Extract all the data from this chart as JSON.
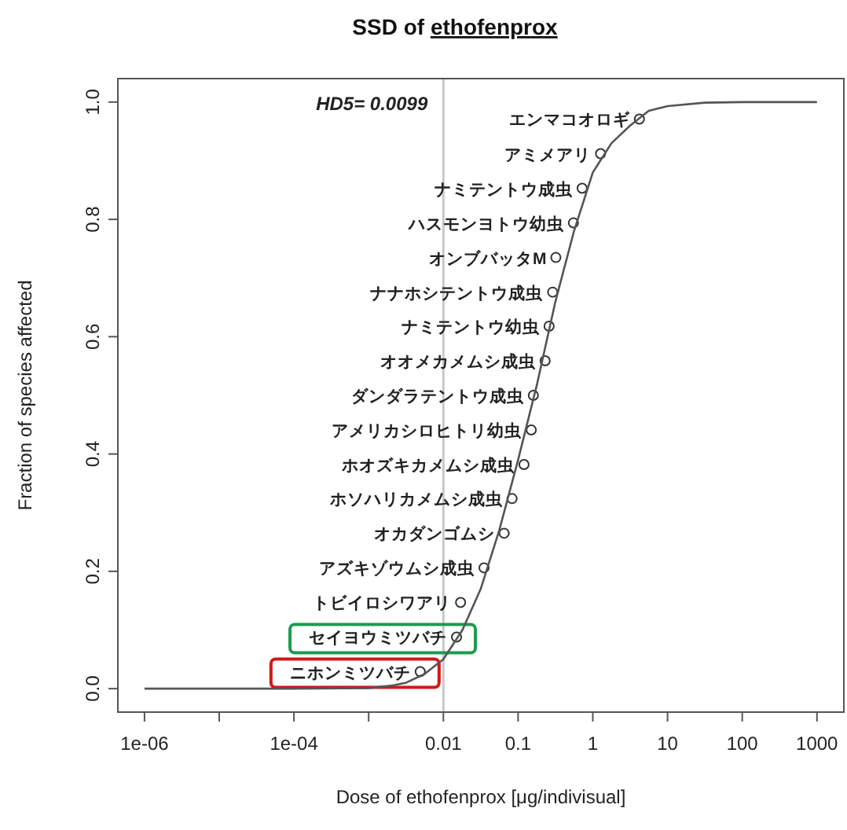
{
  "chart_data": {
    "type": "scatter",
    "title": "SSD of ethofenprox",
    "xlabel": "Dose of ethofenprox [μg/indivisual]",
    "ylabel": "Fraction of species affected",
    "log": "x",
    "grid": false,
    "xlim": [
      4.4e-07,
      2290
    ],
    "ylim": [
      -0.04,
      1.04
    ],
    "xticks": [
      {
        "value": 1e-06,
        "label": "1e-06"
      },
      {
        "value": 1e-05,
        "label": null
      },
      {
        "value": 0.0001,
        "label": "1e-04"
      },
      {
        "value": 0.001,
        "label": null
      },
      0.01,
      0.1,
      1,
      10,
      100,
      1000
    ],
    "yticks": [
      {
        "value": 0,
        "label": "0.0"
      },
      0.2,
      0.4,
      0.6,
      0.8,
      {
        "value": 1,
        "label": "1.0"
      }
    ],
    "ref_lines": [
      {
        "axis": "x",
        "value": 0.01,
        "color": "#c8c8c8"
      }
    ],
    "annotations": [
      "HD5= 0.0099"
    ],
    "series": [
      {
        "marker": "circle",
        "color": "#333333",
        "x": [
          0.0049,
          0.015,
          0.017,
          0.035,
          0.065,
          0.083,
          0.12,
          0.15,
          0.16,
          0.23,
          0.26,
          0.29,
          0.32,
          0.55,
          0.72,
          1.27,
          4.2
        ],
        "values": [
          0.029,
          0.088,
          0.147,
          0.206,
          0.265,
          0.324,
          0.382,
          0.441,
          0.5,
          0.559,
          0.618,
          0.676,
          0.735,
          0.794,
          0.853,
          0.912,
          0.971
        ],
        "value_labels": [
          "ニホンミツバチ",
          "セイヨウミツバチ",
          "トビイロシワアリ",
          "アズキゾウムシ成虫",
          "オカダンゴムシ",
          "ホソハリカメムシ成虫",
          "ホオズキカメムシ成虫",
          "アメリカシロヒトリ幼虫",
          "ダンダラテントウ成虫",
          "オオメカメムシ成虫",
          "ナミテントウ幼虫",
          "ナナホシテントウ成虫",
          "オンブバッタM",
          "ハスモンヨトウ幼虫",
          "ナミテントウ成虫",
          "アミメアリ",
          "エンマコオロギ"
        ]
      },
      {
        "type": "line",
        "color": "#555555",
        "x": [
          1e-06,
          0.0001,
          0.001,
          0.002,
          0.00316,
          0.0056,
          0.01,
          0.018,
          0.0316,
          0.056,
          0.1,
          0.18,
          0.316,
          0.56,
          1,
          1.78,
          3.16,
          5.6,
          10,
          31.6,
          100,
          1000
        ],
        "values": [
          0,
          0,
          0.001,
          0.005,
          0.01,
          0.025,
          0.05,
          0.1,
          0.17,
          0.27,
          0.39,
          0.52,
          0.66,
          0.78,
          0.88,
          0.93,
          0.96,
          0.985,
          0.993,
          0.999,
          1,
          1
        ]
      }
    ]
  }
}
